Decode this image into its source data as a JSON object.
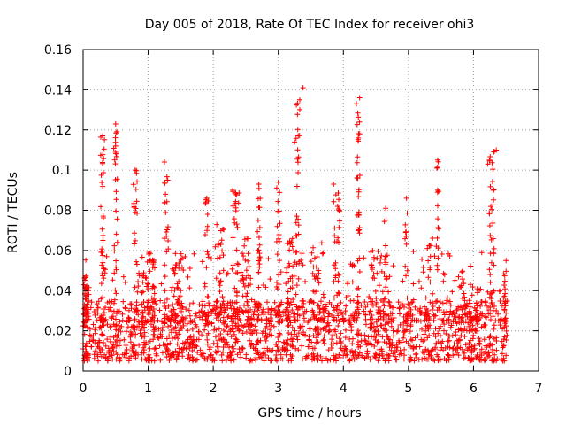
{
  "chart_data": {
    "type": "scatter",
    "title": "Day 005 of 2018, Rate Of TEC Index for receiver ohi3",
    "xlabel": "GPS time / hours",
    "ylabel": "ROTI / TECUs",
    "xlim": [
      0,
      7
    ],
    "ylim": [
      0,
      0.16
    ],
    "xticks": [
      0,
      1,
      2,
      3,
      4,
      5,
      6,
      7
    ],
    "xtick_labels": [
      "0",
      "1",
      "2",
      "3",
      "4",
      "5",
      "6",
      "7"
    ],
    "yticks": [
      0,
      0.02,
      0.04,
      0.06,
      0.08,
      0.1,
      0.12,
      0.14,
      0.16
    ],
    "ytick_labels": [
      "0",
      "0.02",
      "0.04",
      "0.06",
      "0.08",
      "0.1",
      "0.12",
      "0.14",
      "0.16"
    ],
    "grid": true,
    "marker": "+",
    "color": "#ff0000",
    "x_range_of_data": [
      0,
      6.52
    ],
    "baseline_band": [
      0.005,
      0.035
    ],
    "notable_points": [
      {
        "x": 0.3,
        "y": 0.117
      },
      {
        "x": 0.5,
        "y": 0.123
      },
      {
        "x": 0.5,
        "y": 0.112
      },
      {
        "x": 0.8,
        "y": 0.1
      },
      {
        "x": 1.25,
        "y": 0.104
      },
      {
        "x": 1.3,
        "y": 0.095
      },
      {
        "x": 1.9,
        "y": 0.086
      },
      {
        "x": 2.3,
        "y": 0.09
      },
      {
        "x": 2.7,
        "y": 0.093
      },
      {
        "x": 3.0,
        "y": 0.094
      },
      {
        "x": 3.25,
        "y": 0.114
      },
      {
        "x": 3.38,
        "y": 0.141
      },
      {
        "x": 3.33,
        "y": 0.135
      },
      {
        "x": 3.85,
        "y": 0.093
      },
      {
        "x": 4.2,
        "y": 0.133
      },
      {
        "x": 4.25,
        "y": 0.136
      },
      {
        "x": 4.25,
        "y": 0.118
      },
      {
        "x": 4.22,
        "y": 0.096
      },
      {
        "x": 4.45,
        "y": 0.06
      },
      {
        "x": 4.65,
        "y": 0.081
      },
      {
        "x": 4.97,
        "y": 0.086
      },
      {
        "x": 5.45,
        "y": 0.105
      },
      {
        "x": 5.45,
        "y": 0.09
      },
      {
        "x": 6.22,
        "y": 0.103
      },
      {
        "x": 6.35,
        "y": 0.11
      },
      {
        "x": 6.3,
        "y": 0.09
      },
      {
        "x": 6.5,
        "y": 0.055
      }
    ],
    "peak_clusters": [
      {
        "x": 0.05,
        "spread": 0.08,
        "y_max": 0.048,
        "count": 40
      },
      {
        "x": 0.3,
        "spread": 0.06,
        "y_max": 0.117,
        "count": 35
      },
      {
        "x": 0.5,
        "spread": 0.06,
        "y_max": 0.123,
        "count": 30
      },
      {
        "x": 0.8,
        "spread": 0.06,
        "y_max": 0.1,
        "count": 20
      },
      {
        "x": 1.0,
        "spread": 0.2,
        "y_max": 0.06,
        "count": 40
      },
      {
        "x": 1.28,
        "spread": 0.06,
        "y_max": 0.104,
        "count": 25
      },
      {
        "x": 1.45,
        "spread": 0.15,
        "y_max": 0.06,
        "count": 30
      },
      {
        "x": 1.9,
        "spread": 0.06,
        "y_max": 0.086,
        "count": 20
      },
      {
        "x": 2.1,
        "spread": 0.15,
        "y_max": 0.075,
        "count": 25
      },
      {
        "x": 2.35,
        "spread": 0.1,
        "y_max": 0.09,
        "count": 30
      },
      {
        "x": 2.5,
        "spread": 0.15,
        "y_max": 0.066,
        "count": 35
      },
      {
        "x": 2.7,
        "spread": 0.05,
        "y_max": 0.093,
        "count": 25
      },
      {
        "x": 3.0,
        "spread": 0.05,
        "y_max": 0.094,
        "count": 20
      },
      {
        "x": 3.2,
        "spread": 0.15,
        "y_max": 0.066,
        "count": 30
      },
      {
        "x": 3.3,
        "spread": 0.06,
        "y_max": 0.141,
        "count": 30
      },
      {
        "x": 3.6,
        "spread": 0.2,
        "y_max": 0.065,
        "count": 30
      },
      {
        "x": 3.9,
        "spread": 0.1,
        "y_max": 0.093,
        "count": 30
      },
      {
        "x": 4.23,
        "spread": 0.05,
        "y_max": 0.136,
        "count": 30
      },
      {
        "x": 4.5,
        "spread": 0.2,
        "y_max": 0.06,
        "count": 25
      },
      {
        "x": 4.65,
        "spread": 0.05,
        "y_max": 0.081,
        "count": 15
      },
      {
        "x": 4.97,
        "spread": 0.05,
        "y_max": 0.086,
        "count": 15
      },
      {
        "x": 5.3,
        "spread": 0.15,
        "y_max": 0.068,
        "count": 20
      },
      {
        "x": 5.45,
        "spread": 0.05,
        "y_max": 0.105,
        "count": 15
      },
      {
        "x": 5.9,
        "spread": 0.2,
        "y_max": 0.045,
        "count": 25
      },
      {
        "x": 6.28,
        "spread": 0.08,
        "y_max": 0.11,
        "count": 35
      },
      {
        "x": 6.48,
        "spread": 0.05,
        "y_max": 0.055,
        "count": 15
      }
    ],
    "scatter_density": {
      "baseline_points": 1500,
      "moderate_points": 350,
      "seed": 5
    }
  }
}
